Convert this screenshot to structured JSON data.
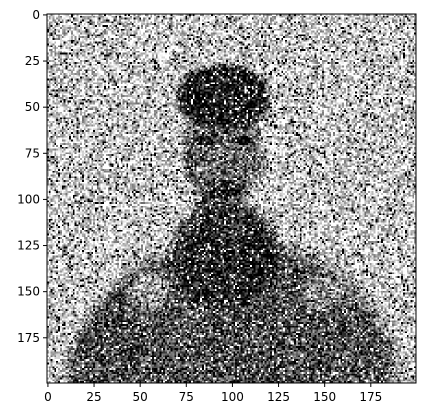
{
  "chart_data": {
    "type": "heatmap",
    "title": "",
    "xlabel": "",
    "ylabel": "",
    "image_size": [
      200,
      200
    ],
    "colormap": "gray",
    "xlim": [
      -0.5,
      199.5
    ],
    "ylim": [
      199.5,
      -0.5
    ],
    "x_ticks": [
      0,
      25,
      50,
      75,
      100,
      125,
      150,
      175
    ],
    "y_ticks": [
      0,
      25,
      50,
      75,
      100,
      125,
      150,
      175
    ],
    "x_tick_labels": [
      "0",
      "25",
      "50",
      "75",
      "100",
      "125",
      "150",
      "175"
    ],
    "y_tick_labels": [
      "0",
      "25",
      "50",
      "75",
      "100",
      "125",
      "150",
      "175"
    ],
    "grid": false,
    "noise_level": 0.45
  }
}
